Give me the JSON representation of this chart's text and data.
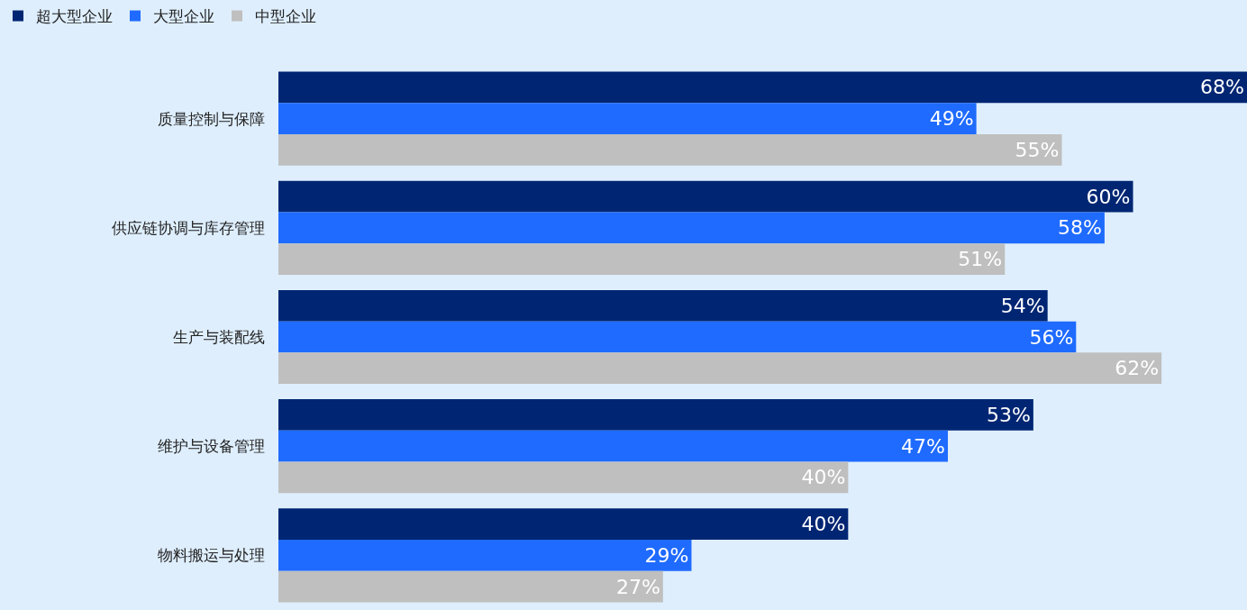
{
  "chart_data": {
    "type": "bar",
    "orientation": "horizontal",
    "categories": [
      "质量控制与保障",
      "供应链协调与库存管理",
      "生产与装配线",
      "维护与设备管理",
      "物料搬运与处理"
    ],
    "series": [
      {
        "name": "超大型企业",
        "color": "#002673",
        "values": [
          68,
          60,
          54,
          53,
          40
        ],
        "value_labels": [
          "68%",
          "60%",
          "54%",
          "53%",
          "40%"
        ]
      },
      {
        "name": "大型企业",
        "color": "#1f6bff",
        "values": [
          49,
          58,
          56,
          47,
          29
        ],
        "value_labels": [
          "49%",
          "58%",
          "56%",
          "47%",
          "29%"
        ]
      },
      {
        "name": "中型企业",
        "color": "#bfbfbf",
        "values": [
          55,
          51,
          62,
          40,
          27
        ],
        "value_labels": [
          "55%",
          "51%",
          "62%",
          "40%",
          "27%"
        ]
      }
    ],
    "xlim": [
      0,
      68
    ],
    "tick_labels": "y",
    "grid": false,
    "legend": "top left"
  }
}
